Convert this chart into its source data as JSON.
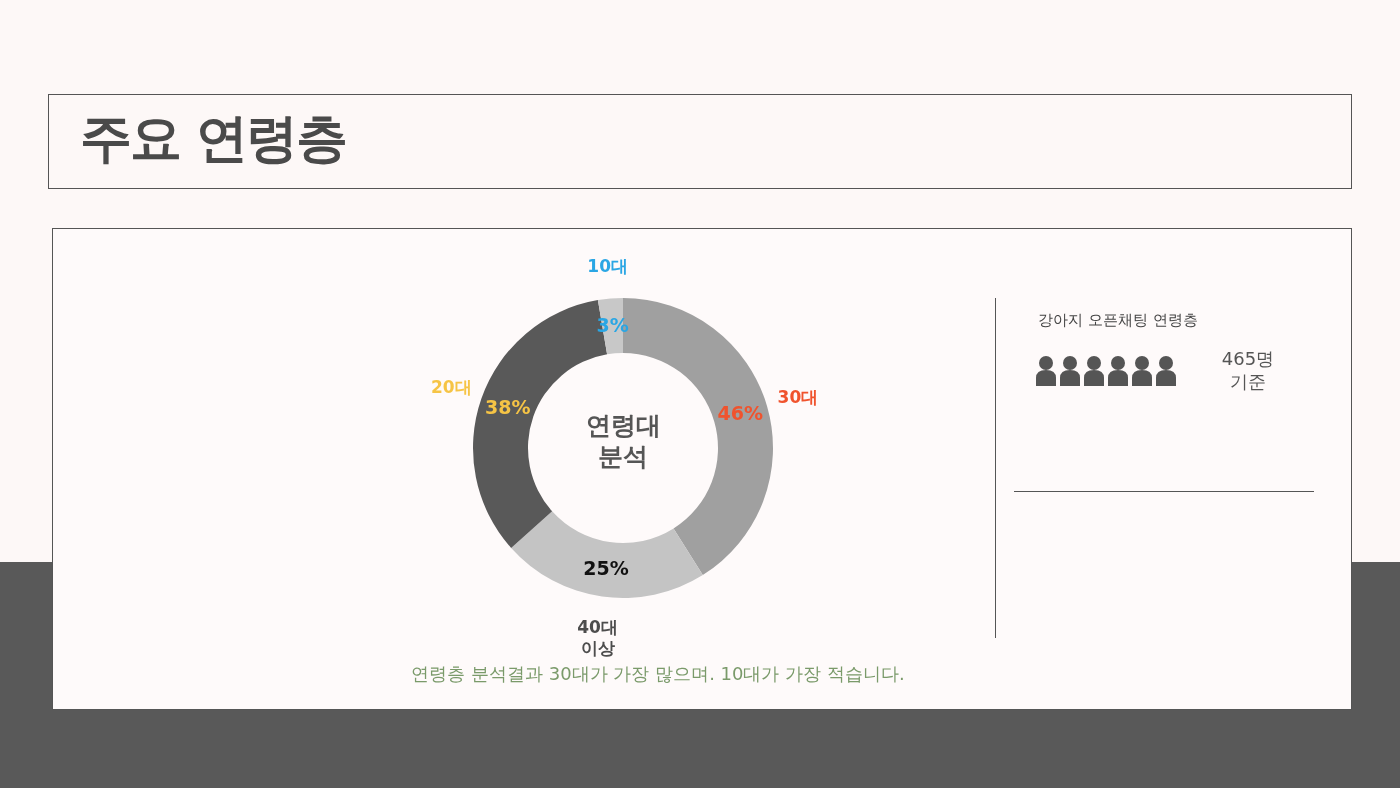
{
  "chart_data": {
    "type": "donut",
    "title": "주요 연령층",
    "categories": [
      "30대",
      "40대 이상",
      "20대",
      "10대"
    ],
    "values": [
      46,
      25,
      38,
      3
    ],
    "colors": [
      "#a0a0a0",
      "#c4c4c4",
      "#595959",
      "#c8c8c8"
    ],
    "value_labels": [
      "46%",
      "25%",
      "38%",
      "3%"
    ],
    "annotations": [
      "연령대 분석",
      "연령층 분석결과 30대가 가장 많으며. 10대가 가장 적습니다.",
      "강아지 오픈채팅 연령층",
      "465명 기준"
    ]
  }
}
